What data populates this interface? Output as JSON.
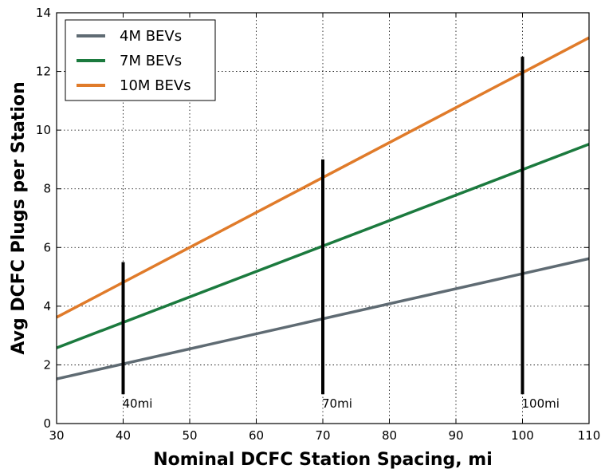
{
  "chart_data": {
    "type": "line",
    "title": "",
    "xlabel": "Nominal DCFC Station Spacing, mi",
    "ylabel": "Avg DCFC Plugs per Station",
    "xlim": [
      30,
      110
    ],
    "ylim": [
      0,
      14
    ],
    "xticks": [
      30,
      40,
      50,
      60,
      70,
      80,
      90,
      100,
      110
    ],
    "yticks": [
      0,
      2,
      4,
      6,
      8,
      10,
      12,
      14
    ],
    "grid": true,
    "legend_position": "top-left",
    "series": [
      {
        "name": "4M BEVs",
        "color": "#5f6b73",
        "x": [
          30,
          110
        ],
        "y": [
          1.52,
          5.62
        ]
      },
      {
        "name": "7M BEVs",
        "color": "#1b7a3e",
        "x": [
          30,
          110
        ],
        "y": [
          2.58,
          9.52
        ]
      },
      {
        "name": "10M BEVs",
        "color": "#e07b2a",
        "x": [
          30,
          110
        ],
        "y": [
          3.62,
          13.15
        ]
      }
    ],
    "vertical_bars": [
      {
        "x": 40,
        "y_low": 1.0,
        "y_high": 5.5,
        "label": "40mi"
      },
      {
        "x": 70,
        "y_low": 1.0,
        "y_high": 9.0,
        "label": "70mi"
      },
      {
        "x": 100,
        "y_low": 1.0,
        "y_high": 12.5,
        "label": "100mi"
      }
    ]
  }
}
